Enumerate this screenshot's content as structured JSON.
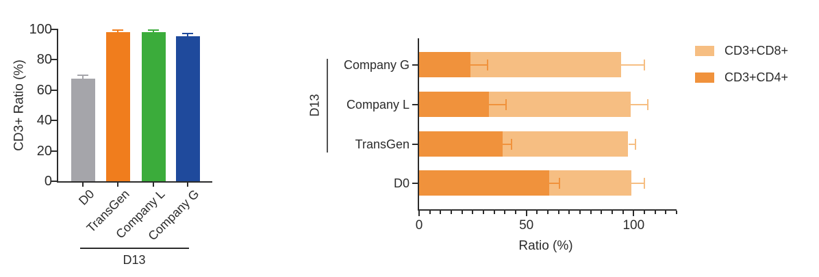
{
  "figure": {
    "background": "#ffffff",
    "text_color": "#2b2b2b",
    "axis_color": "#2b2b2b"
  },
  "chart_data": [
    {
      "type": "bar",
      "title": "",
      "ylabel": "CD3+ Ratio (%)",
      "xlabel": "",
      "categories": [
        "D0",
        "TransGen",
        "Company L",
        "Company G"
      ],
      "values": [
        67.5,
        98,
        98,
        95.5
      ],
      "errors": [
        2.5,
        1.7,
        1.7,
        1.7
      ],
      "bar_colors": [
        "#A5A5AA",
        "#F07D1D",
        "#3BAC3B",
        "#1F4A9C"
      ],
      "ylim": [
        0,
        100
      ],
      "yticks": [
        0,
        20,
        40,
        60,
        80,
        100
      ],
      "grid": false,
      "error_bar_style": "upper-cap, colored same as bar",
      "group": {
        "label": "D13",
        "members": [
          "TransGen",
          "Company L",
          "Company G"
        ]
      }
    },
    {
      "type": "stacked-bar-horizontal",
      "title": "",
      "xlabel": "Ratio (%)",
      "categories_top_to_bottom": [
        "Company G",
        "Company L",
        "TransGen",
        "D0"
      ],
      "series": [
        {
          "name": "CD3+CD4+",
          "color": "#F0923C",
          "values": [
            24,
            32.5,
            39,
            60.5
          ],
          "errors": [
            8,
            8,
            4,
            5
          ]
        },
        {
          "name": "CD3+CD8+",
          "color": "#F6BE82",
          "values": [
            70,
            66,
            58.5,
            38.5
          ],
          "errors": [
            11,
            8,
            3.5,
            6
          ]
        }
      ],
      "stack_totals": [
        94,
        98.5,
        97.5,
        99
      ],
      "xlim": [
        0,
        120
      ],
      "xticks_major": [
        0,
        50,
        100
      ],
      "xtick_minor_step": 5,
      "grid": false,
      "legend_position": "right",
      "group": {
        "label": "D13",
        "members": [
          "Company G",
          "Company L",
          "TransGen"
        ]
      }
    }
  ],
  "legend": {
    "items": [
      {
        "label": "CD3+CD8+",
        "color": "#F6BE82"
      },
      {
        "label": "CD3+CD4+",
        "color": "#F0923C"
      }
    ]
  }
}
